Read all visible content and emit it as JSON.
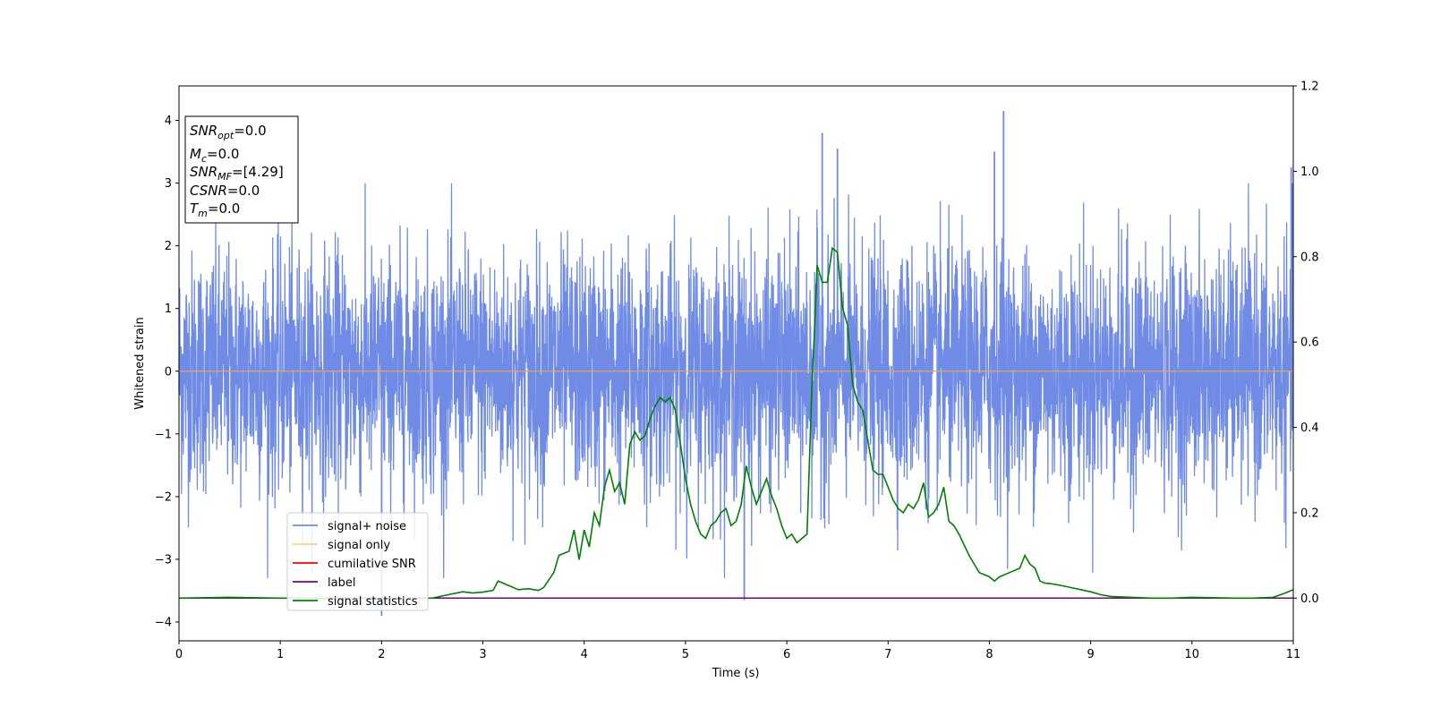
{
  "chart_data": {
    "type": "line",
    "xlabel": "Time (s)",
    "ylabel": "Whitened strain",
    "xlim": [
      0,
      11
    ],
    "ylim": [
      -4.3,
      4.55
    ],
    "y2lim": [
      -0.1,
      1.2
    ],
    "xticks": [
      0,
      1,
      2,
      3,
      4,
      5,
      6,
      7,
      8,
      9,
      10,
      11
    ],
    "yticks": [
      -4,
      -3,
      -2,
      -1,
      0,
      1,
      2,
      3,
      4
    ],
    "y2ticks": [
      0.0,
      0.2,
      0.4,
      0.6,
      0.8,
      1.0,
      1.2
    ],
    "xtick_labels": [
      "0",
      "1",
      "2",
      "3",
      "4",
      "5",
      "6",
      "7",
      "8",
      "9",
      "10",
      "11"
    ],
    "ytick_labels": [
      "−4",
      "−3",
      "−2",
      "−1",
      "0",
      "1",
      "2",
      "3",
      "4"
    ],
    "y2tick_labels": [
      "0.0",
      "0.2",
      "0.4",
      "0.6",
      "0.8",
      "1.0",
      "1.2"
    ],
    "grid": false,
    "legend_position": "lower-left",
    "colors": {
      "signal_noise": "#6f8be6",
      "signal_only": "#ffd27a",
      "cumulative_snr": "#ff0000",
      "label": "#800080",
      "statistics": "#008000"
    },
    "series": [
      {
        "name": "signal+ noise",
        "axis": "left",
        "description_values": "dense noise, approx. range -3.9 to 4.2",
        "notable_peaks": [
          [
            2.0,
            -3.9
          ],
          [
            5.58,
            -3.65
          ],
          [
            6.35,
            3.8
          ],
          [
            6.5,
            3.55
          ],
          [
            8.14,
            4.15
          ],
          [
            8.05,
            3.5
          ],
          [
            10.98,
            3.25
          ]
        ]
      },
      {
        "name": "signal only",
        "axis": "left",
        "x": [
          0,
          11
        ],
        "y": [
          0,
          0
        ]
      },
      {
        "name": "cumilative SNR",
        "axis": "left",
        "x": [],
        "y": []
      },
      {
        "name": "label",
        "axis": "right",
        "x": [
          0,
          11
        ],
        "y": [
          0,
          0
        ]
      },
      {
        "name": "signal statistics",
        "axis": "right",
        "x": [
          0,
          0.5,
          1.0,
          1.5,
          2.0,
          2.3,
          2.5,
          2.6,
          2.7,
          2.8,
          2.9,
          3.0,
          3.1,
          3.15,
          3.25,
          3.35,
          3.45,
          3.55,
          3.6,
          3.7,
          3.75,
          3.85,
          3.9,
          3.95,
          4.0,
          4.05,
          4.1,
          4.15,
          4.2,
          4.25,
          4.3,
          4.35,
          4.4,
          4.45,
          4.5,
          4.55,
          4.6,
          4.65,
          4.7,
          4.75,
          4.8,
          4.85,
          4.9,
          4.95,
          5.0,
          5.05,
          5.1,
          5.15,
          5.2,
          5.25,
          5.3,
          5.35,
          5.4,
          5.45,
          5.5,
          5.55,
          5.6,
          5.65,
          5.7,
          5.75,
          5.8,
          5.85,
          5.9,
          5.95,
          6.0,
          6.05,
          6.1,
          6.15,
          6.2,
          6.25,
          6.28,
          6.3,
          6.35,
          6.4,
          6.45,
          6.5,
          6.55,
          6.6,
          6.65,
          6.7,
          6.75,
          6.8,
          6.85,
          6.9,
          6.95,
          7.0,
          7.05,
          7.1,
          7.15,
          7.2,
          7.25,
          7.3,
          7.35,
          7.4,
          7.45,
          7.5,
          7.55,
          7.6,
          7.65,
          7.7,
          7.8,
          7.9,
          8.0,
          8.05,
          8.1,
          8.2,
          8.3,
          8.35,
          8.4,
          8.45,
          8.5,
          8.55,
          8.6,
          8.7,
          8.8,
          8.9,
          9.0,
          9.1,
          9.2,
          9.4,
          9.6,
          9.8,
          10.0,
          10.2,
          10.4,
          10.6,
          10.8,
          10.9,
          10.95,
          11.0
        ],
        "y": [
          0.0,
          0.002,
          0.0,
          0.0,
          0.0,
          0.0,
          0.0,
          0.005,
          0.01,
          0.015,
          0.012,
          0.014,
          0.018,
          0.04,
          0.03,
          0.02,
          0.022,
          0.018,
          0.025,
          0.06,
          0.1,
          0.11,
          0.16,
          0.09,
          0.16,
          0.12,
          0.2,
          0.17,
          0.26,
          0.3,
          0.25,
          0.27,
          0.22,
          0.36,
          0.39,
          0.37,
          0.38,
          0.42,
          0.45,
          0.47,
          0.46,
          0.47,
          0.44,
          0.36,
          0.28,
          0.22,
          0.18,
          0.15,
          0.14,
          0.17,
          0.18,
          0.2,
          0.21,
          0.17,
          0.18,
          0.22,
          0.31,
          0.26,
          0.22,
          0.25,
          0.28,
          0.24,
          0.21,
          0.17,
          0.14,
          0.15,
          0.13,
          0.14,
          0.15,
          0.51,
          0.66,
          0.78,
          0.74,
          0.74,
          0.82,
          0.81,
          0.68,
          0.64,
          0.5,
          0.46,
          0.44,
          0.37,
          0.3,
          0.29,
          0.29,
          0.26,
          0.23,
          0.21,
          0.2,
          0.22,
          0.21,
          0.23,
          0.27,
          0.19,
          0.2,
          0.22,
          0.26,
          0.18,
          0.17,
          0.15,
          0.1,
          0.06,
          0.05,
          0.04,
          0.05,
          0.06,
          0.07,
          0.1,
          0.08,
          0.07,
          0.04,
          0.035,
          0.034,
          0.03,
          0.025,
          0.02,
          0.015,
          0.008,
          0.004,
          0.002,
          0.0,
          0.0,
          0.002,
          0.001,
          0.0,
          0.0,
          0.002,
          0.01,
          0.015,
          0.02
        ]
      }
    ],
    "annotation_box": {
      "lines": [
        {
          "base": "SNR",
          "sub": "opt",
          "rest": "=0.0"
        },
        {
          "base": "M",
          "sub": "c",
          "rest": "=0.0"
        },
        {
          "base": "SNR",
          "sub": "MF",
          "rest": "=[4.29]"
        },
        {
          "base": "CSNR",
          "sub": "",
          "rest": "=0.0"
        },
        {
          "base": "T",
          "sub": "m",
          "rest": "=0.0"
        }
      ]
    }
  }
}
